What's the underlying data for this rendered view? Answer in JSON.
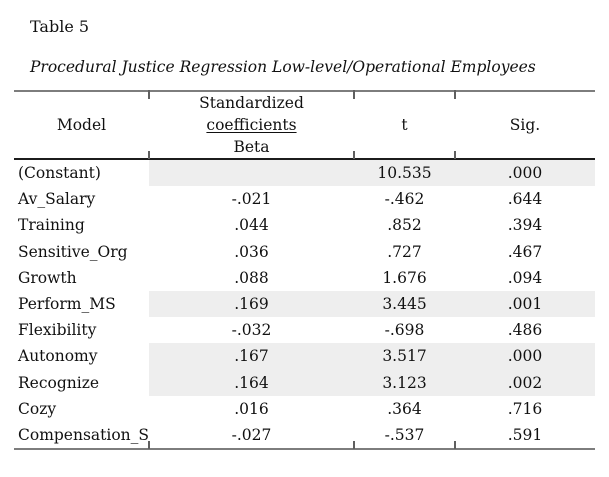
{
  "document": {
    "table_label": "Table 5",
    "table_title": "Procedural Justice Regression Low-level/Operational Employees"
  },
  "table": {
    "header": {
      "model": "Model",
      "coeff_line1": "Standardized",
      "coeff_line2": "coefficients",
      "coeff_line3": "Beta",
      "t": "t",
      "sig": "Sig."
    },
    "rows": [
      {
        "model": "(Constant)",
        "beta": "",
        "t": "10.535",
        "sig": ".000",
        "highlighted": true
      },
      {
        "model": "Av_Salary",
        "beta": "-.021",
        "t": "-.462",
        "sig": ".644",
        "highlighted": false
      },
      {
        "model": "Training",
        "beta": ".044",
        "t": ".852",
        "sig": ".394",
        "highlighted": false
      },
      {
        "model": "Sensitive_Org",
        "beta": ".036",
        "t": ".727",
        "sig": ".467",
        "highlighted": false
      },
      {
        "model": "Growth",
        "beta": ".088",
        "t": "1.676",
        "sig": ".094",
        "highlighted": false
      },
      {
        "model": "Perform_MS",
        "beta": ".169",
        "t": "3.445",
        "sig": ".001",
        "highlighted": true
      },
      {
        "model": "Flexibility",
        "beta": "-.032",
        "t": "-.698",
        "sig": ".486",
        "highlighted": false
      },
      {
        "model": "Autonomy",
        "beta": ".167",
        "t": "3.517",
        "sig": ".000",
        "highlighted": true
      },
      {
        "model": "Recognize",
        "beta": ".164",
        "t": "3.123",
        "sig": ".002",
        "highlighted": true
      },
      {
        "model": "Cozy",
        "beta": ".016",
        "t": ".364",
        "sig": ".716",
        "highlighted": false
      },
      {
        "model": "Compensation_S",
        "beta": "-.027",
        "t": "-.537",
        "sig": ".591",
        "highlighted": false
      }
    ]
  },
  "colors": {
    "highlight_row": "#eeeeee",
    "rule_gray": "#7d7d7d",
    "rule_dark": "#1c1c1c",
    "tick": "#5f5f5f",
    "text": "#111111"
  }
}
